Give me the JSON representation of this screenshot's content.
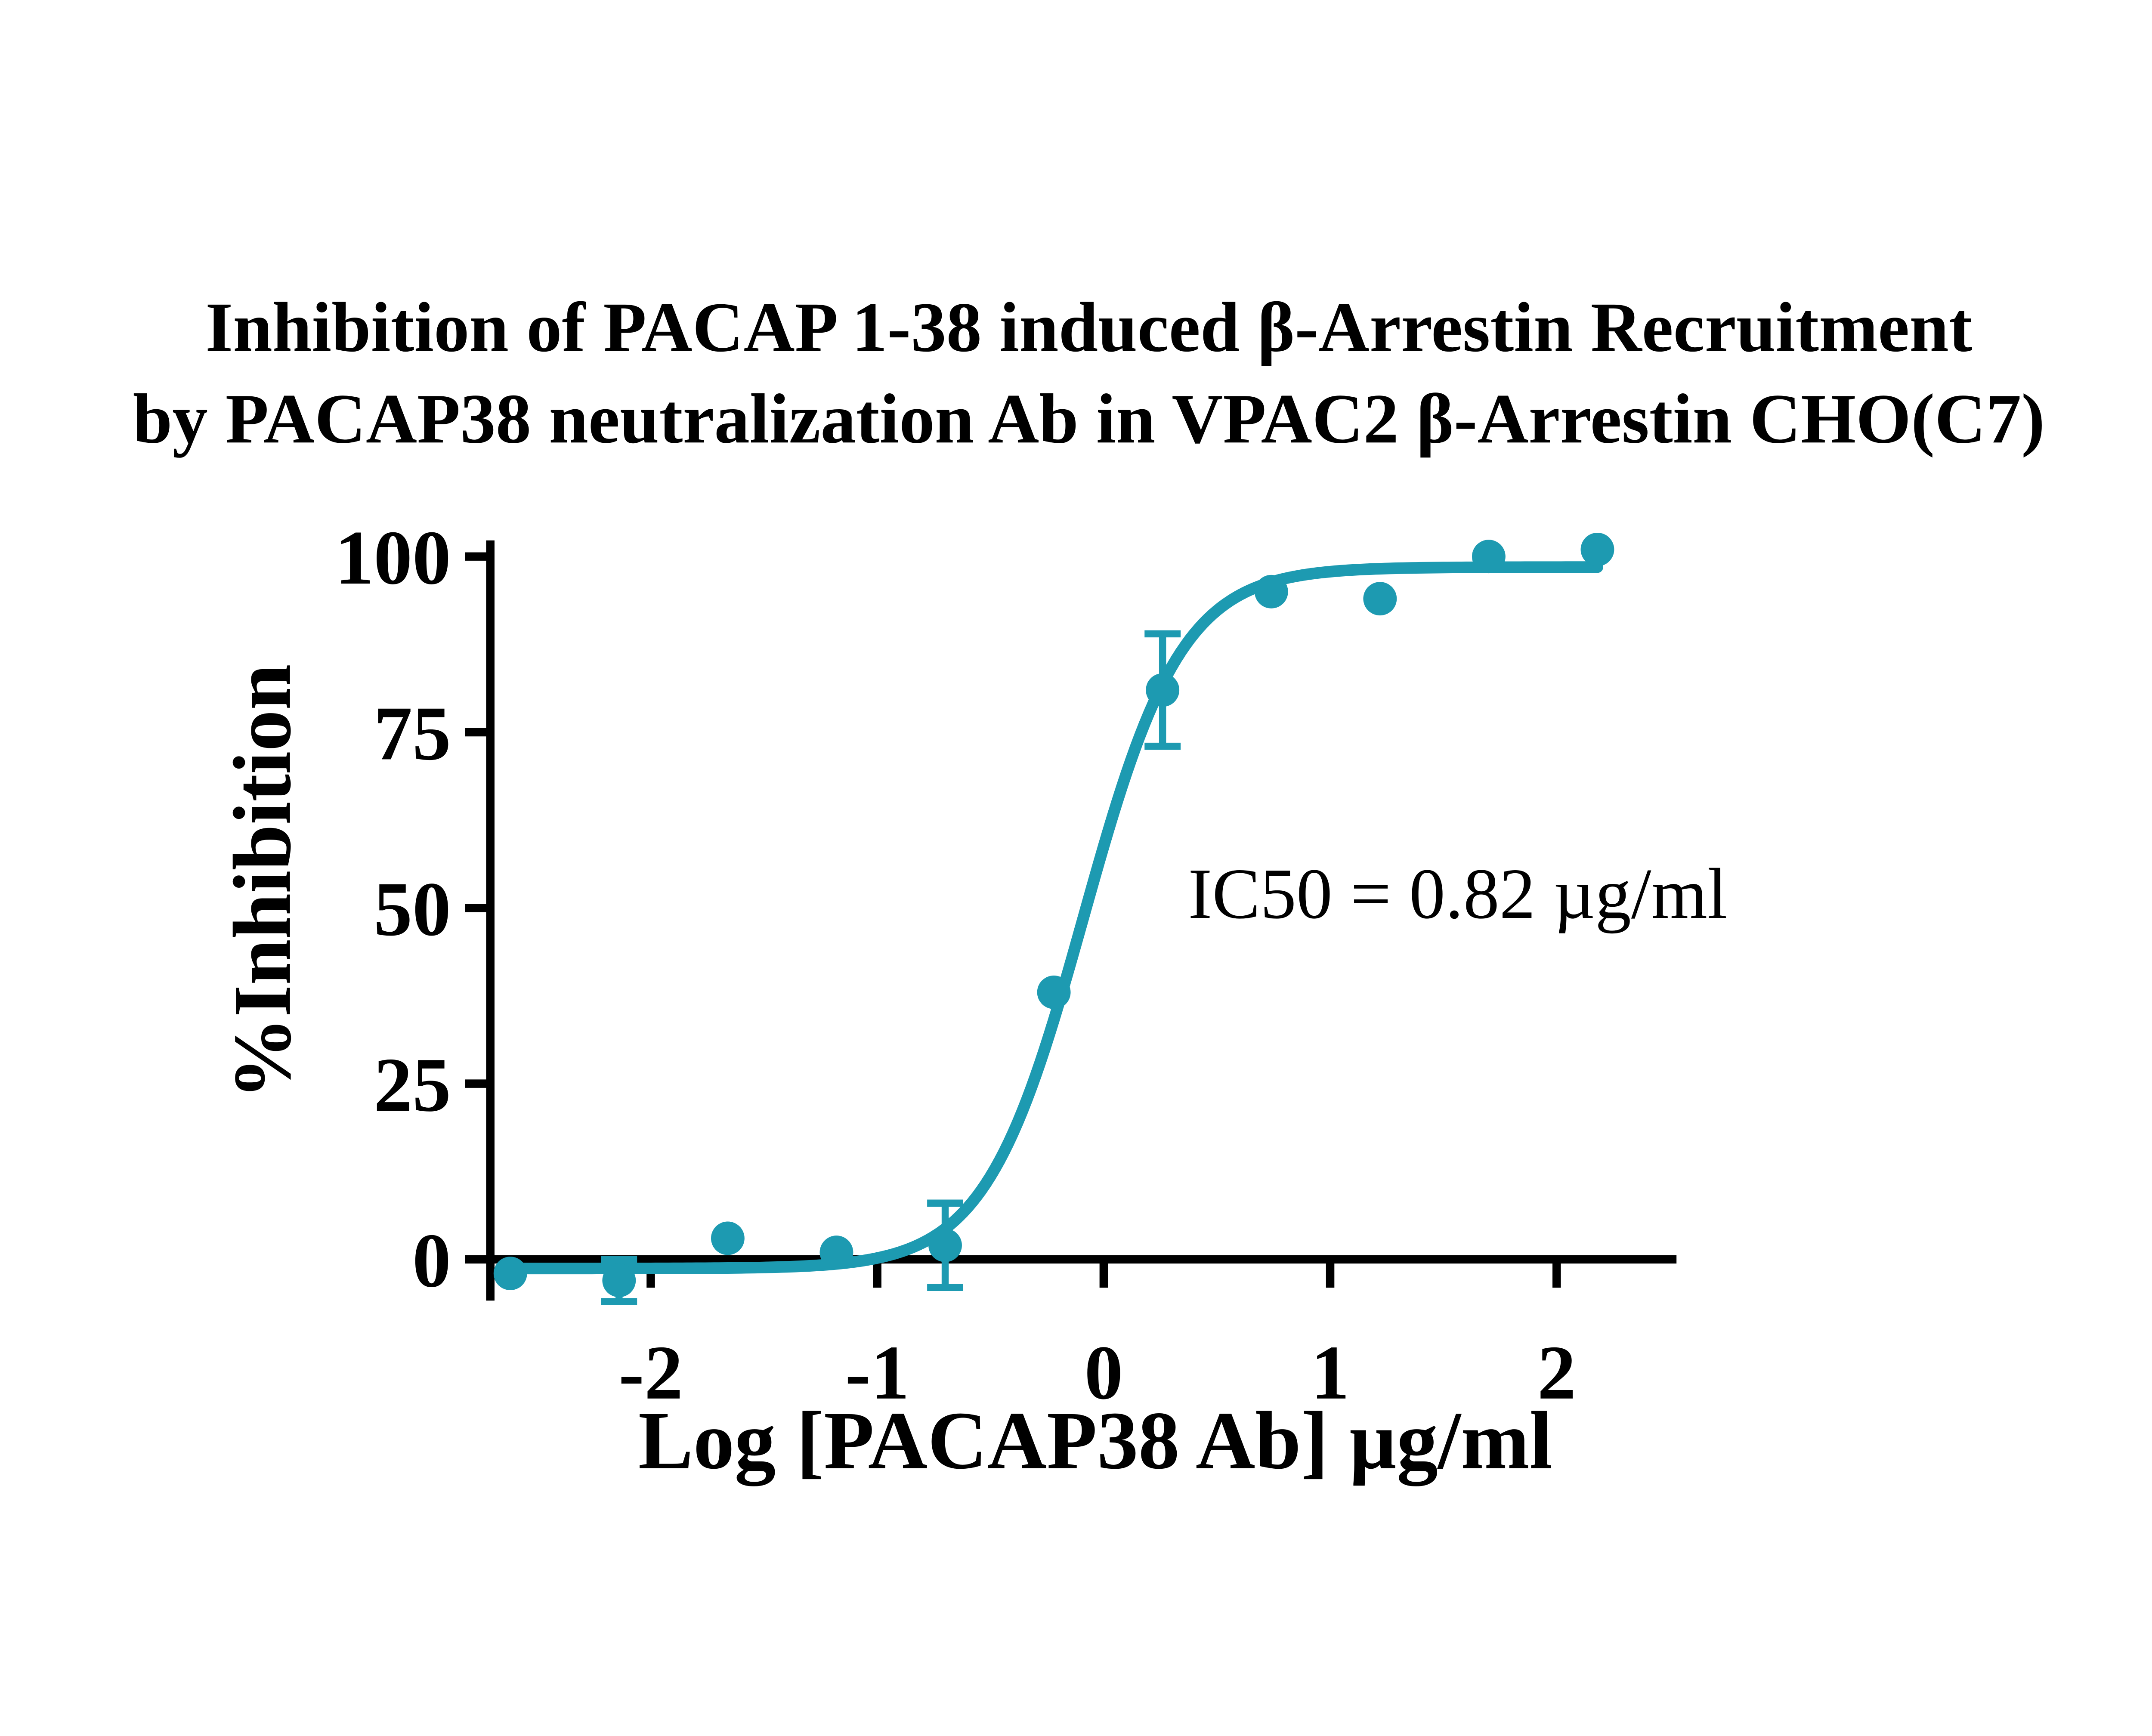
{
  "title": {
    "line1": "Inhibition of PACAP 1-38 induced β-Arrestin Recruitment",
    "line2": "by PACAP38 neutralization Ab in VPAC2 β-Arrestin CHO(C7)"
  },
  "annotation": {
    "ic50_label": "IC50 = 0.82 µg/ml"
  },
  "axes": {
    "x": {
      "label": "Log [PACAP38 Ab] µg/ml",
      "ticks": [
        -2,
        -1,
        0,
        1,
        2
      ]
    },
    "y": {
      "label": "%Inhibition",
      "ticks": [
        0,
        25,
        50,
        75,
        100
      ]
    }
  },
  "chart_data": {
    "type": "scatter",
    "title": "Inhibition of PACAP 1-38 induced β-Arrestin Recruitment by PACAP38 neutralization Ab in VPAC2 β-Arrestin CHO(C7)",
    "xlabel": "Log [PACAP38 Ab] µg/ml",
    "ylabel": "%Inhibition",
    "x": [
      -2.62,
      -2.14,
      -1.66,
      -1.18,
      -0.7,
      -0.22,
      0.26,
      0.74,
      1.22,
      1.7,
      2.18
    ],
    "y": [
      -2,
      -3,
      3,
      1,
      2,
      38,
      81,
      95,
      94,
      100,
      101
    ],
    "y_err": [
      0,
      3,
      0,
      0,
      6,
      0,
      8,
      0,
      0,
      0,
      0
    ],
    "fit": {
      "model": "4PL-sigmoid",
      "bottom": -1.3,
      "top": 98.5,
      "log_ic50": -0.09,
      "hill_slope": 2.0,
      "x_start": -2.66,
      "x_end": 2.18
    },
    "ic50_ug_ml": 0.82,
    "xlim": [
      -2.71,
      2.53
    ],
    "x_tick_range": [
      -2,
      2
    ],
    "y_tick_range": [
      0,
      100
    ],
    "grid": false,
    "legend": "none",
    "series_color": "#1D9AB1",
    "axis_color": "#000000",
    "background_color": "#FFFFFF"
  }
}
